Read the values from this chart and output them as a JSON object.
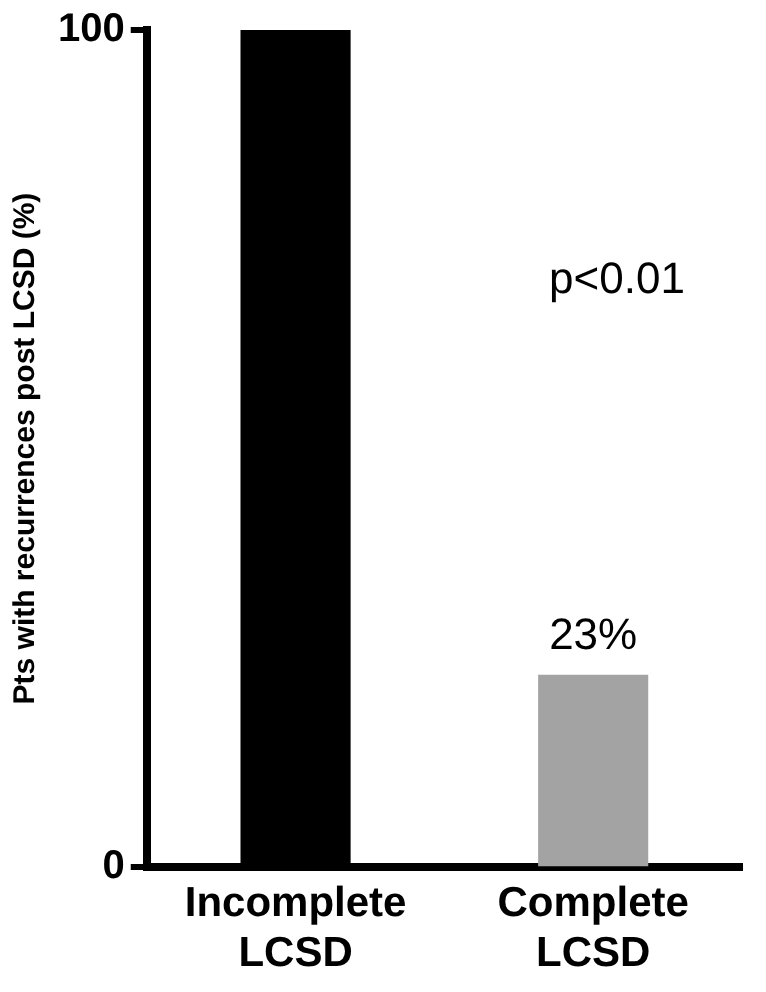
{
  "chart_data": {
    "type": "bar",
    "categories": [
      "Incomplete LCSD",
      "Complete LCSD"
    ],
    "values": [
      100,
      23
    ],
    "colors": [
      "#000000",
      "#a3a3a3"
    ],
    "value_labels": [
      null,
      "23%"
    ],
    "ylabel": "Pts with recurrences post LCSD (%)",
    "ylim": [
      0,
      100
    ],
    "yticks": [
      0,
      100
    ],
    "annotations": [
      "p<0.01"
    ],
    "grid": false,
    "legend": false
  }
}
